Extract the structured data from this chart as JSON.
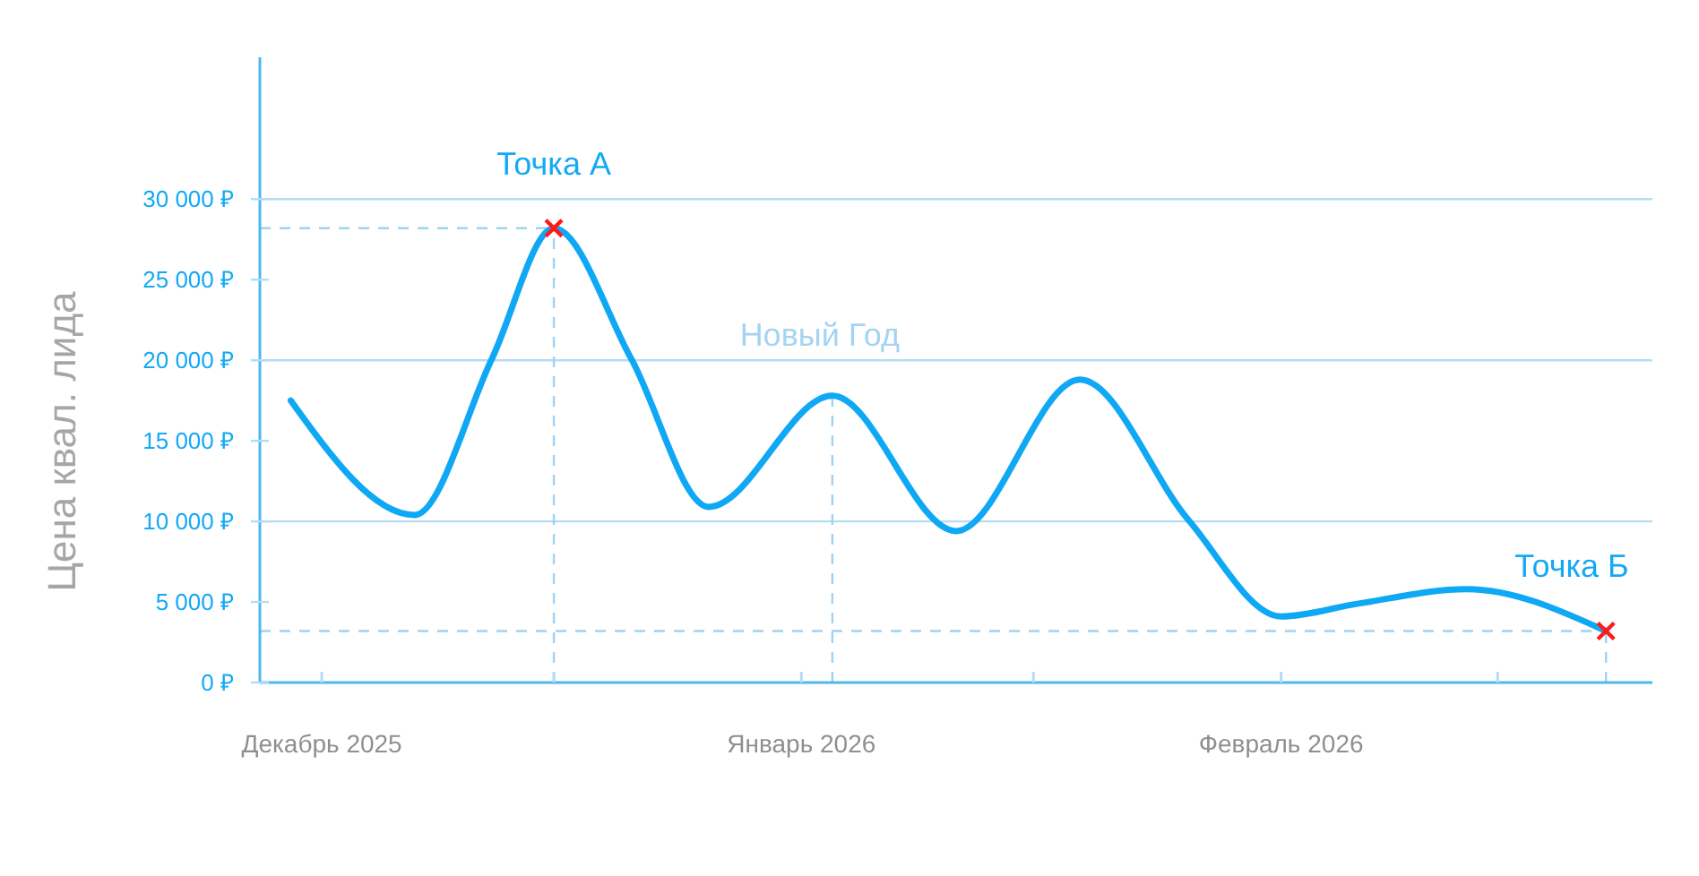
{
  "chart_data": {
    "type": "line",
    "ylabel": "Цена квал. лида",
    "x": [
      "2025-11-29",
      "2025-12-07",
      "2025-12-12",
      "2025-12-16",
      "2025-12-21",
      "2025-12-26",
      "2026-01-03",
      "2026-01-11",
      "2026-01-19",
      "2026-01-26",
      "2026-02-01",
      "2026-02-06",
      "2026-02-13",
      "2026-02-22"
    ],
    "series": [
      {
        "color": "#0fa8f5",
        "values": [
          17500,
          10400,
          20100,
          28200,
          20100,
          10900,
          17800,
          9400,
          18800,
          10100,
          4100,
          4900,
          5800,
          3200
        ]
      },
      {
        "type": "scatter",
        "marker": "cross",
        "color": "#ff1a1a",
        "x": [
          "2025-12-16",
          "2026-02-22"
        ],
        "values": [
          28200,
          3200
        ]
      }
    ],
    "xlim": [
      "2025-11-27",
      "2026-02-25"
    ],
    "xticks": [
      {
        "value": "2025-12-01",
        "label": "Декабрь 2025"
      },
      {
        "value": "2025-12-16",
        "label": null
      },
      {
        "value": "2026-01-01",
        "label": "Январь 2026"
      },
      {
        "value": "2026-01-16",
        "label": null
      },
      {
        "value": "2026-02-01",
        "label": "Февраль 2026"
      },
      {
        "value": "2026-02-15",
        "label": null
      }
    ],
    "ylim": [
      0,
      38800
    ],
    "yticks": [
      {
        "value": 0,
        "label": "0 ₽"
      },
      {
        "value": 5000,
        "label": "5 000 ₽"
      },
      {
        "value": 10000,
        "label": "10 000 ₽"
      },
      {
        "value": 15000,
        "label": "15 000 ₽"
      },
      {
        "value": 20000,
        "label": "20 000 ₽"
      },
      {
        "value": 25000,
        "label": "25 000 ₽"
      },
      {
        "value": 30000,
        "label": "30 000 ₽"
      }
    ],
    "grid": false,
    "ref_lines": [
      {
        "axis": "y",
        "value": 10000,
        "color": "#b3dcf5",
        "line_style": "solid"
      },
      {
        "axis": "y",
        "value": 20000,
        "color": "#b3dcf5",
        "line_style": "solid"
      },
      {
        "axis": "y",
        "value": 30000,
        "color": "#b3dcf5",
        "line_style": "solid"
      },
      {
        "axis": "y",
        "value": 28200,
        "color": "#9fd3f3",
        "line_style": "dashed"
      },
      {
        "axis": "y",
        "value": 3200,
        "color": "#9fd3f3",
        "line_style": "dashed"
      },
      {
        "axis": "x",
        "value": "2025-12-16",
        "color": "#9fd3f3",
        "line_style": "dashed"
      },
      {
        "axis": "x",
        "value": "2026-01-03",
        "color": "#9fd3f3",
        "line_style": "dashed",
        "label": "Новый Год"
      },
      {
        "axis": "x",
        "value": "2026-02-22",
        "color": "#9fd3f3",
        "line_style": "dashed"
      }
    ],
    "annotations": [
      {
        "text": "Точка А",
        "x": "2025-12-16",
        "y": 28200
      },
      {
        "text": "Точка Б",
        "x": "2026-02-22",
        "y": 3200
      }
    ]
  }
}
